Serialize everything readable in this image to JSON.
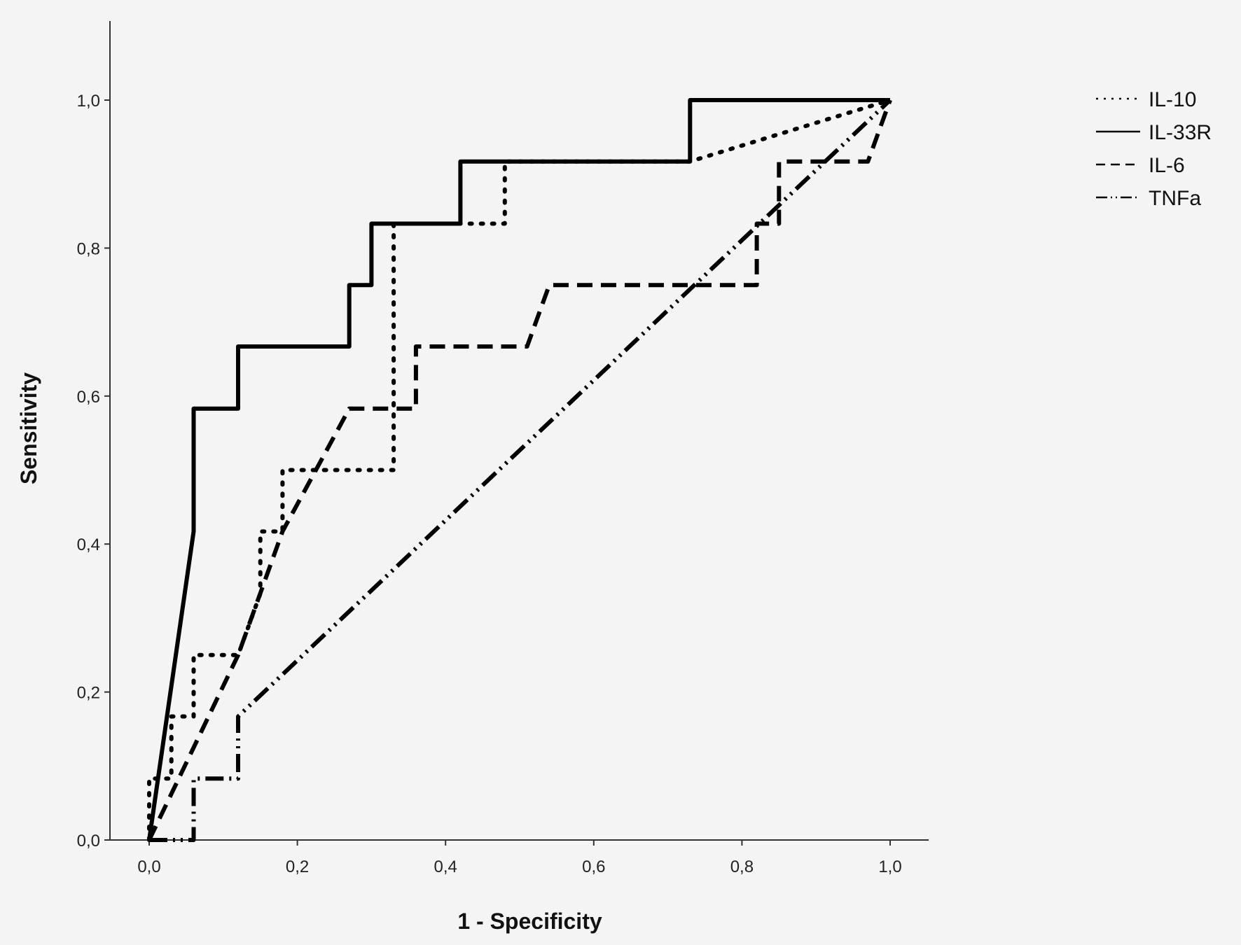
{
  "chart_data": {
    "type": "line",
    "title": "",
    "xlabel": "1 - Specificity",
    "ylabel": "Sensitivity",
    "xlim": [
      0,
      1
    ],
    "ylim": [
      0,
      1.1
    ],
    "x_ticks": [
      "0,0",
      "0,2",
      "0,4",
      "0,6",
      "0,8",
      "1,0"
    ],
    "y_ticks": [
      "0,0",
      "0,2",
      "0,4",
      "0,6",
      "0,8",
      "1,0"
    ],
    "grid": false,
    "legend_position": "right",
    "series": [
      {
        "name": "IL-10",
        "dash": "dotted",
        "points": [
          [
            0,
            0
          ],
          [
            0,
            0.083
          ],
          [
            0.03,
            0.083
          ],
          [
            0.03,
            0.167
          ],
          [
            0.06,
            0.167
          ],
          [
            0.06,
            0.25
          ],
          [
            0.12,
            0.25
          ],
          [
            0.15,
            0.333
          ],
          [
            0.15,
            0.417
          ],
          [
            0.18,
            0.417
          ],
          [
            0.18,
            0.5
          ],
          [
            0.33,
            0.5
          ],
          [
            0.33,
            0.833
          ],
          [
            0.42,
            0.833
          ],
          [
            0.48,
            0.833
          ],
          [
            0.48,
            0.917
          ],
          [
            0.73,
            0.917
          ],
          [
            1,
            1
          ]
        ]
      },
      {
        "name": "IL-33R",
        "dash": "solid",
        "points": [
          [
            0,
            0
          ],
          [
            0.06,
            0.417
          ],
          [
            0.06,
            0.583
          ],
          [
            0.12,
            0.583
          ],
          [
            0.12,
            0.667
          ],
          [
            0.27,
            0.667
          ],
          [
            0.27,
            0.75
          ],
          [
            0.3,
            0.75
          ],
          [
            0.3,
            0.833
          ],
          [
            0.42,
            0.833
          ],
          [
            0.42,
            0.917
          ],
          [
            0.73,
            0.917
          ],
          [
            0.73,
            1
          ],
          [
            1,
            1
          ]
        ]
      },
      {
        "name": "IL-6",
        "dash": "dashed",
        "points": [
          [
            0,
            0
          ],
          [
            0.12,
            0.25
          ],
          [
            0.18,
            0.417
          ],
          [
            0.27,
            0.583
          ],
          [
            0.36,
            0.583
          ],
          [
            0.36,
            0.667
          ],
          [
            0.51,
            0.667
          ],
          [
            0.54,
            0.75
          ],
          [
            0.82,
            0.75
          ],
          [
            0.82,
            0.833
          ],
          [
            0.85,
            0.833
          ],
          [
            0.85,
            0.917
          ],
          [
            0.97,
            0.917
          ],
          [
            1,
            1
          ]
        ]
      },
      {
        "name": "TNFa",
        "dash": "dash-dot-dot",
        "points": [
          [
            0,
            0
          ],
          [
            0.06,
            0
          ],
          [
            0.06,
            0.083
          ],
          [
            0.12,
            0.083
          ],
          [
            0.12,
            0.167
          ],
          [
            1,
            1
          ]
        ]
      }
    ]
  }
}
